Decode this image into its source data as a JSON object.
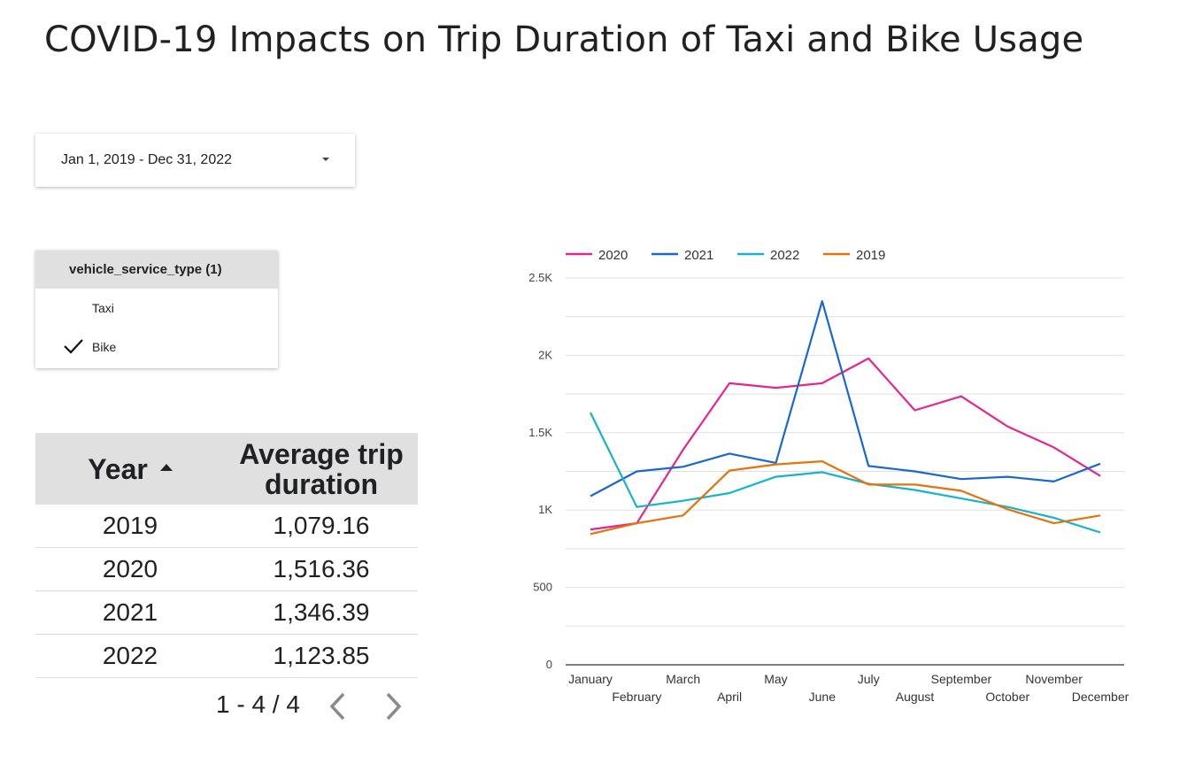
{
  "title": "COVID-19 Impacts on Trip Duration of Taxi and Bike Usage",
  "date_range": {
    "value": "Jan 1, 2019 - Dec 31, 2022",
    "icon": "dropdown-caret-icon"
  },
  "filter": {
    "header": "vehicle_service_type (1)",
    "options": [
      {
        "label": "Taxi",
        "checked": false
      },
      {
        "label": "Bike",
        "checked": true
      }
    ]
  },
  "table": {
    "headers": {
      "year": "Year",
      "duration": "Average trip duration"
    },
    "sort": "ascending",
    "rows": [
      {
        "year": "2019",
        "duration": "1,079.16"
      },
      {
        "year": "2020",
        "duration": "1,516.36"
      },
      {
        "year": "2021",
        "duration": "1,346.39"
      },
      {
        "year": "2022",
        "duration": "1,123.85"
      }
    ],
    "pagination": "1 - 4 / 4"
  },
  "chart_data": {
    "type": "line",
    "categories": [
      "January",
      "February",
      "March",
      "April",
      "May",
      "June",
      "July",
      "August",
      "September",
      "October",
      "November",
      "December"
    ],
    "ylim": [
      0,
      2500
    ],
    "yticks": [
      {
        "value": 0,
        "label": "0"
      },
      {
        "value": 500,
        "label": "500"
      },
      {
        "value": 1000,
        "label": "1K"
      },
      {
        "value": 1500,
        "label": "1.5K"
      },
      {
        "value": 2000,
        "label": "2K"
      },
      {
        "value": 2500,
        "label": "2.5K"
      }
    ],
    "grid": true,
    "legend_position": "top-left",
    "series": [
      {
        "name": "2020",
        "color": "#e52592",
        "values": [
          875,
          915,
          1390,
          1820,
          1790,
          1820,
          1980,
          1645,
          1735,
          1540,
          1405,
          1220
        ]
      },
      {
        "name": "2021",
        "color": "#1967d2",
        "values": [
          1090,
          1250,
          1280,
          1365,
          1305,
          2350,
          1285,
          1250,
          1200,
          1215,
          1185,
          1300
        ]
      },
      {
        "name": "2022",
        "color": "#12b5cb",
        "values": [
          1630,
          1020,
          1060,
          1110,
          1215,
          1245,
          1170,
          1130,
          1075,
          1020,
          950,
          855
        ]
      },
      {
        "name": "2019",
        "color": "#e8710a",
        "values": [
          845,
          915,
          965,
          1255,
          1295,
          1315,
          1165,
          1165,
          1125,
          1005,
          915,
          965
        ]
      }
    ]
  }
}
